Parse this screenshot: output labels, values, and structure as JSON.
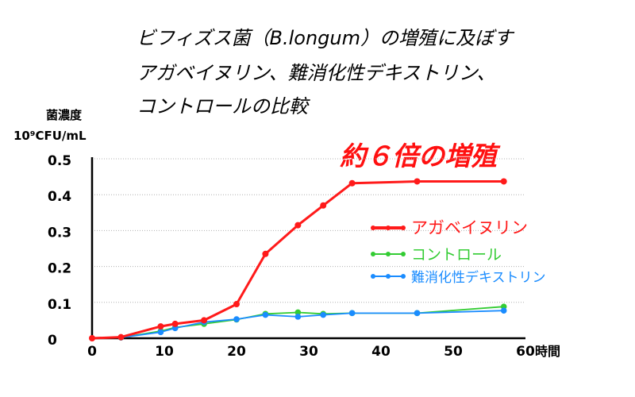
{
  "title_lines": [
    "ビフィズス菌（B.longum）の増殖に及ぼす",
    "アガベイヌリン、難消化性デキストリン、",
    "コントロールの比較"
  ],
  "ylabel_line1": "菌濃度",
  "ylabel_line2": "10⁹CFU/mL",
  "annotation": "約６倍の増殖",
  "chart_data": {
    "type": "line",
    "xlabel": "時間",
    "ylabel": "菌濃度 10⁹CFU/mL",
    "xlim": [
      0,
      60
    ],
    "ylim": [
      0,
      0.5
    ],
    "xticks": [
      "0",
      "10",
      "20",
      "30",
      "40",
      "50",
      "60"
    ],
    "yticks": [
      "0",
      "0.1",
      "0.2",
      "0.3",
      "0.4",
      "0.5"
    ],
    "grid": "horizontal dotted",
    "legend_position": "right",
    "series": [
      {
        "name": "アガベイヌリン",
        "color": "#ff1a1a",
        "x": [
          0,
          4,
          9.5,
          11.5,
          15.5,
          20,
          24,
          28.5,
          32,
          36,
          45,
          57
        ],
        "y": [
          0,
          0.003,
          0.033,
          0.04,
          0.05,
          0.095,
          0.235,
          0.315,
          0.37,
          0.432,
          0.437,
          0.437
        ]
      },
      {
        "name": "コントロール",
        "color": "#33cc33",
        "x": [
          4,
          9.5,
          11.5,
          15.5,
          20,
          24,
          28.5,
          32,
          36,
          45,
          57
        ],
        "y": [
          0.002,
          0.02,
          0.03,
          0.04,
          0.052,
          0.068,
          0.072,
          0.068,
          0.07,
          0.07,
          0.088
        ]
      },
      {
        "name": "難消化性デキストリン",
        "color": "#1a8cff",
        "x": [
          4,
          9.5,
          11.5,
          15.5,
          20,
          24,
          28.5,
          32,
          36,
          45,
          57
        ],
        "y": [
          0.002,
          0.017,
          0.028,
          0.045,
          0.053,
          0.065,
          0.06,
          0.065,
          0.07,
          0.07,
          0.077
        ]
      }
    ]
  }
}
